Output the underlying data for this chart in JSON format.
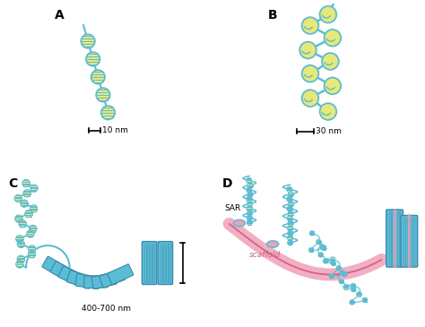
{
  "background": "#ffffff",
  "blue": "#5bbcd6",
  "blue_dark": "#3a8aaa",
  "yellow": "#e8e878",
  "pink": "#f0a0b8",
  "pink_dark": "#d06080",
  "panel_labels": [
    "A",
    "B",
    "C",
    "D"
  ],
  "scale_A": "10 nm",
  "scale_B": "30 nm",
  "scale_C": "400-700 nm",
  "sar_label": "SAR",
  "scaffold_label": "scaffold"
}
